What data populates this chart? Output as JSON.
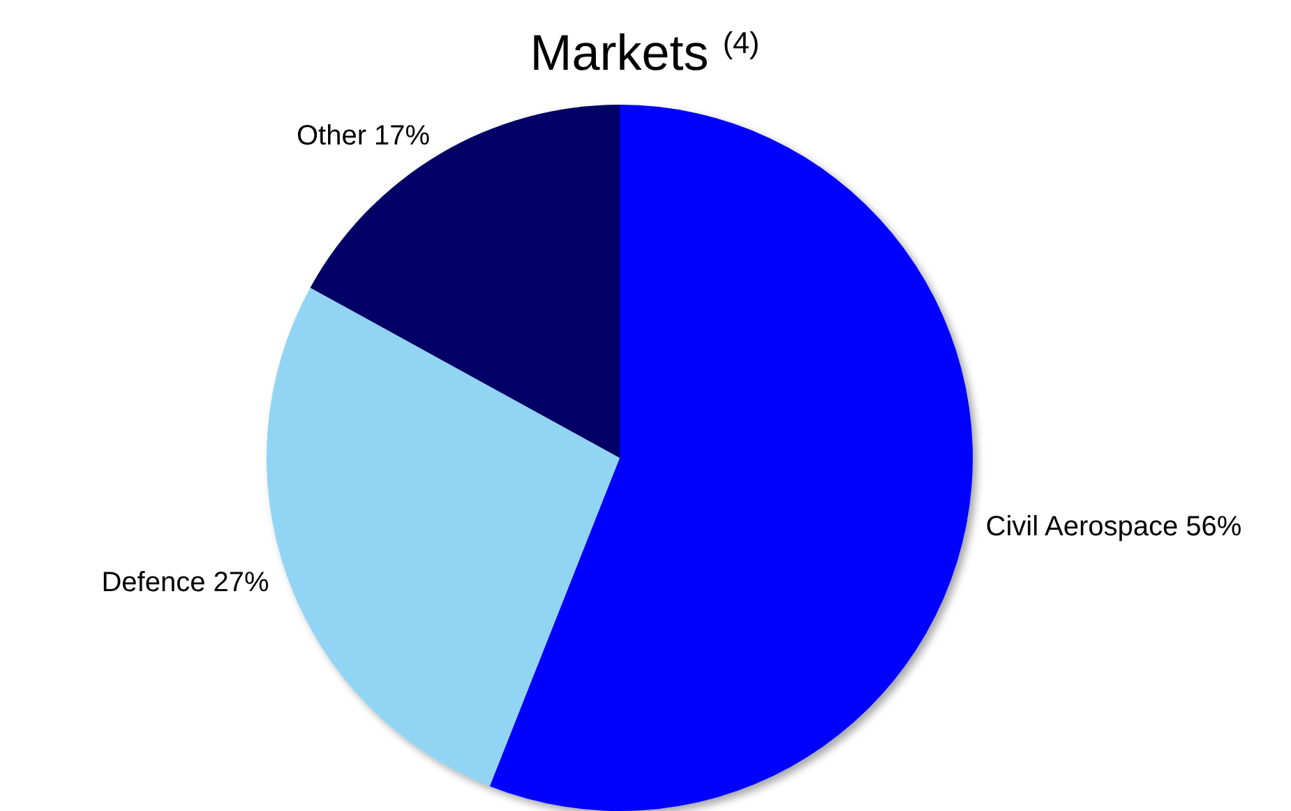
{
  "chart_data": {
    "type": "pie",
    "title": "Markets $^{(4)}$",
    "categories": [
      "Civil Aerospace",
      "Defence",
      "Other"
    ],
    "values": [
      56,
      27,
      17
    ],
    "value_labels": [
      "56%",
      "27%",
      "17%"
    ],
    "colors": [
      "#0000ff",
      "#92d4f4",
      "#000066"
    ]
  }
}
